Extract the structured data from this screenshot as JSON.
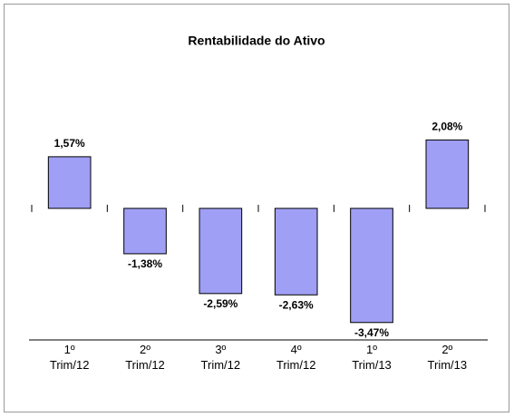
{
  "chart_data": {
    "type": "bar",
    "title": "Rentabilidade do Ativo",
    "categories": [
      "1º Trim/12",
      "2º Trim/12",
      "3º Trim/12",
      "4º Trim/12",
      "1º Trim/13",
      "2º Trim/13"
    ],
    "values": [
      1.57,
      -1.38,
      -2.59,
      -2.63,
      -3.47,
      2.08
    ],
    "value_labels": [
      "1,57%",
      "-1,38%",
      "-2,59%",
      "-2,63%",
      "-3,47%",
      "2,08%"
    ],
    "color": "#9f9ff5",
    "ylim": [
      -4,
      3
    ]
  }
}
